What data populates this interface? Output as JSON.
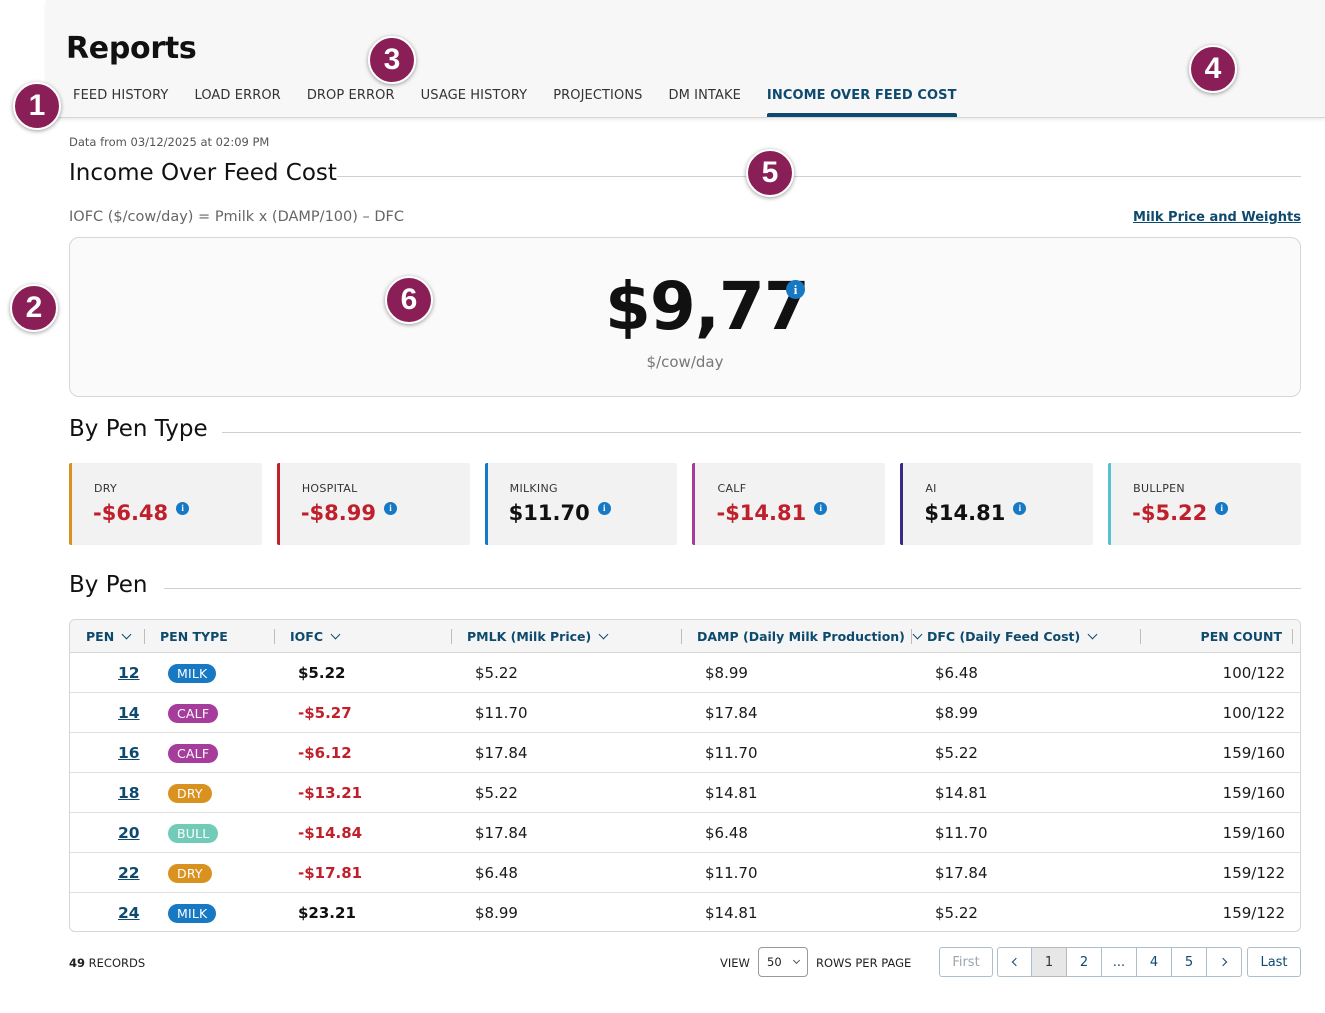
{
  "header": {
    "title": "Reports",
    "tabs": [
      {
        "label": "FEED HISTORY"
      },
      {
        "label": "LOAD ERROR"
      },
      {
        "label": "DROP ERROR"
      },
      {
        "label": "USAGE HISTORY"
      },
      {
        "label": "PROJECTIONS"
      },
      {
        "label": "DM INTAKE"
      },
      {
        "label": "INCOME OVER FEED COST",
        "active": true
      }
    ]
  },
  "markers": [
    "1",
    "2",
    "3",
    "4",
    "5",
    "6"
  ],
  "data_from": "Data from 03/12/2025 at 02:09 PM",
  "iofc": {
    "title": "Income Over Feed Cost",
    "formula": "IOFC ($/cow/day) = Pmilk x (DAMP/100) – DFC",
    "link": "Milk Price and Weights",
    "value": "$9,77",
    "unit": "$/cow/day"
  },
  "by_pen_type": {
    "title": "By Pen Type",
    "cards": [
      {
        "label": "DRY",
        "value": "-$6.48",
        "color": "#d9921f",
        "negative": true
      },
      {
        "label": "HOSPITAL",
        "value": "-$8.99",
        "color": "#c0202b",
        "negative": true
      },
      {
        "label": "MILKING",
        "value": "$11.70",
        "color": "#1778c4",
        "negative": false
      },
      {
        "label": "CALF",
        "value": "-$14.81",
        "color": "#a63d9c",
        "negative": true
      },
      {
        "label": "AI",
        "value": "$14.81",
        "color": "#3a2a87",
        "negative": false
      },
      {
        "label": "BULLPEN",
        "value": "-$5.22",
        "color": "#55c2cc",
        "negative": true
      }
    ]
  },
  "by_pen": {
    "title": "By Pen",
    "columns": {
      "pen": "PEN",
      "pen_type": "PEN TYPE",
      "iofc": "IOFC",
      "pmlk": "PMLK (Milk Price)",
      "damp": "DAMP (Daily Milk Production)",
      "dfc": "DFC (Daily Feed Cost)",
      "pen_count": "PEN COUNT"
    },
    "badge_colors": {
      "MILK": "#1778c4",
      "CALF": "#a63d9c",
      "DRY": "#d9921f",
      "BULL": "#72cbb9"
    },
    "rows": [
      {
        "pen": "12",
        "type": "MILK",
        "iofc": "$5.22",
        "negative": false,
        "pmlk": "$5.22",
        "damp": "$8.99",
        "dfc": "$6.48",
        "count": "100/122"
      },
      {
        "pen": "14",
        "type": "CALF",
        "iofc": "-$5.27",
        "negative": true,
        "pmlk": "$11.70",
        "damp": "$17.84",
        "dfc": "$8.99",
        "count": "100/122"
      },
      {
        "pen": "16",
        "type": "CALF",
        "iofc": "-$6.12",
        "negative": true,
        "pmlk": "$17.84",
        "damp": "$11.70",
        "dfc": "$5.22",
        "count": "159/160"
      },
      {
        "pen": "18",
        "type": "DRY",
        "iofc": "-$13.21",
        "negative": true,
        "pmlk": "$5.22",
        "damp": "$14.81",
        "dfc": "$14.81",
        "count": "159/160"
      },
      {
        "pen": "20",
        "type": "BULL",
        "iofc": "-$14.84",
        "negative": true,
        "pmlk": "$17.84",
        "damp": "$6.48",
        "dfc": "$11.70",
        "count": "159/160"
      },
      {
        "pen": "22",
        "type": "DRY",
        "iofc": "-$17.81",
        "negative": true,
        "pmlk": "$6.48",
        "damp": "$11.70",
        "dfc": "$17.84",
        "count": "159/122"
      },
      {
        "pen": "24",
        "type": "MILK",
        "iofc": "$23.21",
        "negative": false,
        "pmlk": "$8.99",
        "damp": "$14.81",
        "dfc": "$5.22",
        "count": "159/122"
      }
    ]
  },
  "footer": {
    "records_count": "49",
    "records_label": "RECORDS",
    "view_label": "VIEW",
    "rows_value": "50",
    "rows_label": "ROWS PER PAGE",
    "first": "First",
    "last": "Last",
    "pages": [
      "1",
      "2",
      "...",
      "4",
      "5"
    ],
    "current_page": "1"
  }
}
